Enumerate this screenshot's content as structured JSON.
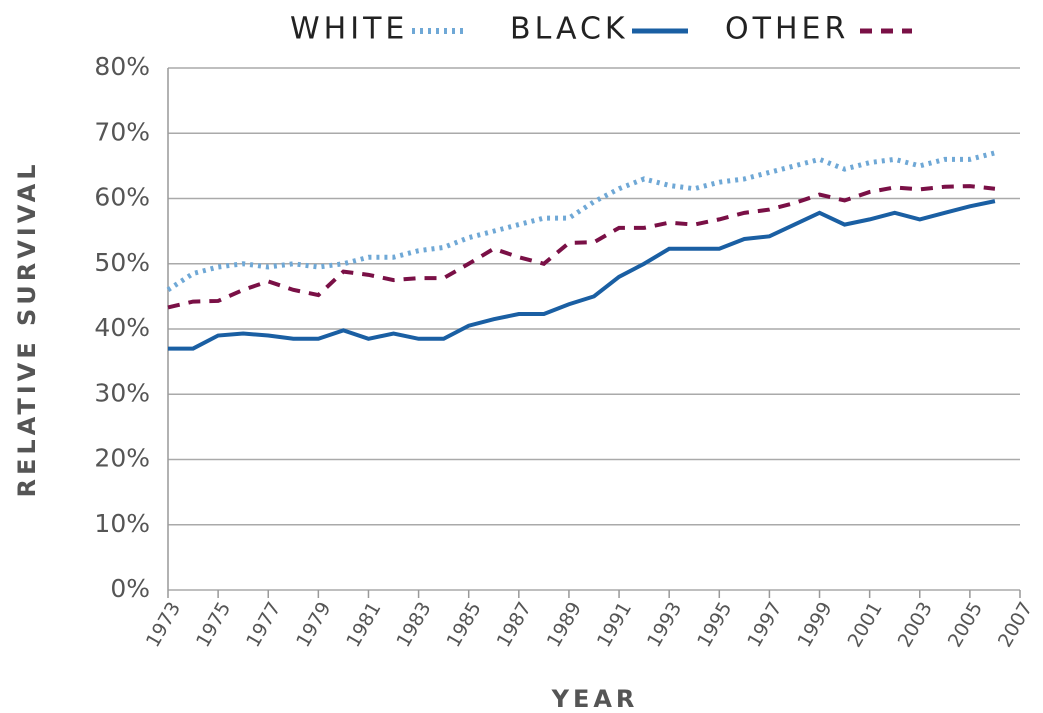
{
  "chart_data": {
    "type": "line",
    "x_label": "YEAR",
    "y_label": "RELATIVE SURVIVAL",
    "x": [
      1973,
      1974,
      1975,
      1976,
      1977,
      1978,
      1979,
      1980,
      1981,
      1982,
      1983,
      1984,
      1985,
      1986,
      1987,
      1988,
      1989,
      1990,
      1991,
      1992,
      1993,
      1994,
      1995,
      1996,
      1997,
      1998,
      1999,
      2000,
      2001,
      2002,
      2003,
      2004,
      2005,
      2006
    ],
    "series": [
      {
        "name": "WHITE",
        "color": "#6fa8d6",
        "style": "dotted",
        "values": [
          46,
          48.5,
          49.5,
          50,
          49.5,
          50,
          49.5,
          50,
          51,
          51,
          52,
          52.5,
          54,
          55,
          56,
          57,
          57,
          59.5,
          61.5,
          63,
          62,
          61.5,
          62.5,
          63,
          64,
          65,
          66,
          64.5,
          65.5,
          66,
          65,
          66,
          66,
          67
        ]
      },
      {
        "name": "BLACK",
        "color": "#1a5fa3",
        "style": "solid",
        "values": [
          37,
          37,
          39,
          39.3,
          39,
          38.5,
          38.5,
          39.8,
          38.5,
          39.3,
          38.5,
          38.5,
          40.5,
          41.5,
          42.3,
          42.3,
          43.8,
          45,
          48,
          50,
          52.3,
          52.3,
          52.3,
          53.8,
          54.2,
          56,
          57.8,
          56,
          56.8,
          57.8,
          56.8,
          57.8,
          58.8,
          59.6
        ]
      },
      {
        "name": "OTHER",
        "color": "#7a1046",
        "style": "dashed",
        "values": [
          43.3,
          44.2,
          44.3,
          46,
          47.3,
          46,
          45.2,
          48.8,
          48.3,
          47.5,
          47.8,
          47.8,
          50,
          52.3,
          51,
          50,
          53.2,
          53.3,
          55.5,
          55.5,
          56.3,
          56,
          56.8,
          57.8,
          58.3,
          59.3,
          60.6,
          59.7,
          61,
          61.7,
          61.4,
          61.8,
          61.9,
          61.5
        ]
      }
    ],
    "xlim": [
      1973,
      2007
    ],
    "xticks": [
      1973,
      1975,
      1977,
      1979,
      1981,
      1983,
      1985,
      1987,
      1989,
      1991,
      1993,
      1995,
      1997,
      1999,
      2001,
      2003,
      2005,
      2007
    ],
    "ylim": [
      0,
      80
    ],
    "yticks": [
      {
        "value": 0,
        "label": "0%"
      },
      {
        "value": 10,
        "label": "10%"
      },
      {
        "value": 20,
        "label": "20%"
      },
      {
        "value": 30,
        "label": "30%"
      },
      {
        "value": 40,
        "label": "40%"
      },
      {
        "value": 50,
        "label": "50%"
      },
      {
        "value": 60,
        "label": "60%"
      },
      {
        "value": 70,
        "label": "70%"
      },
      {
        "value": 80,
        "label": "80%"
      }
    ],
    "grid": true,
    "legend": "top"
  }
}
